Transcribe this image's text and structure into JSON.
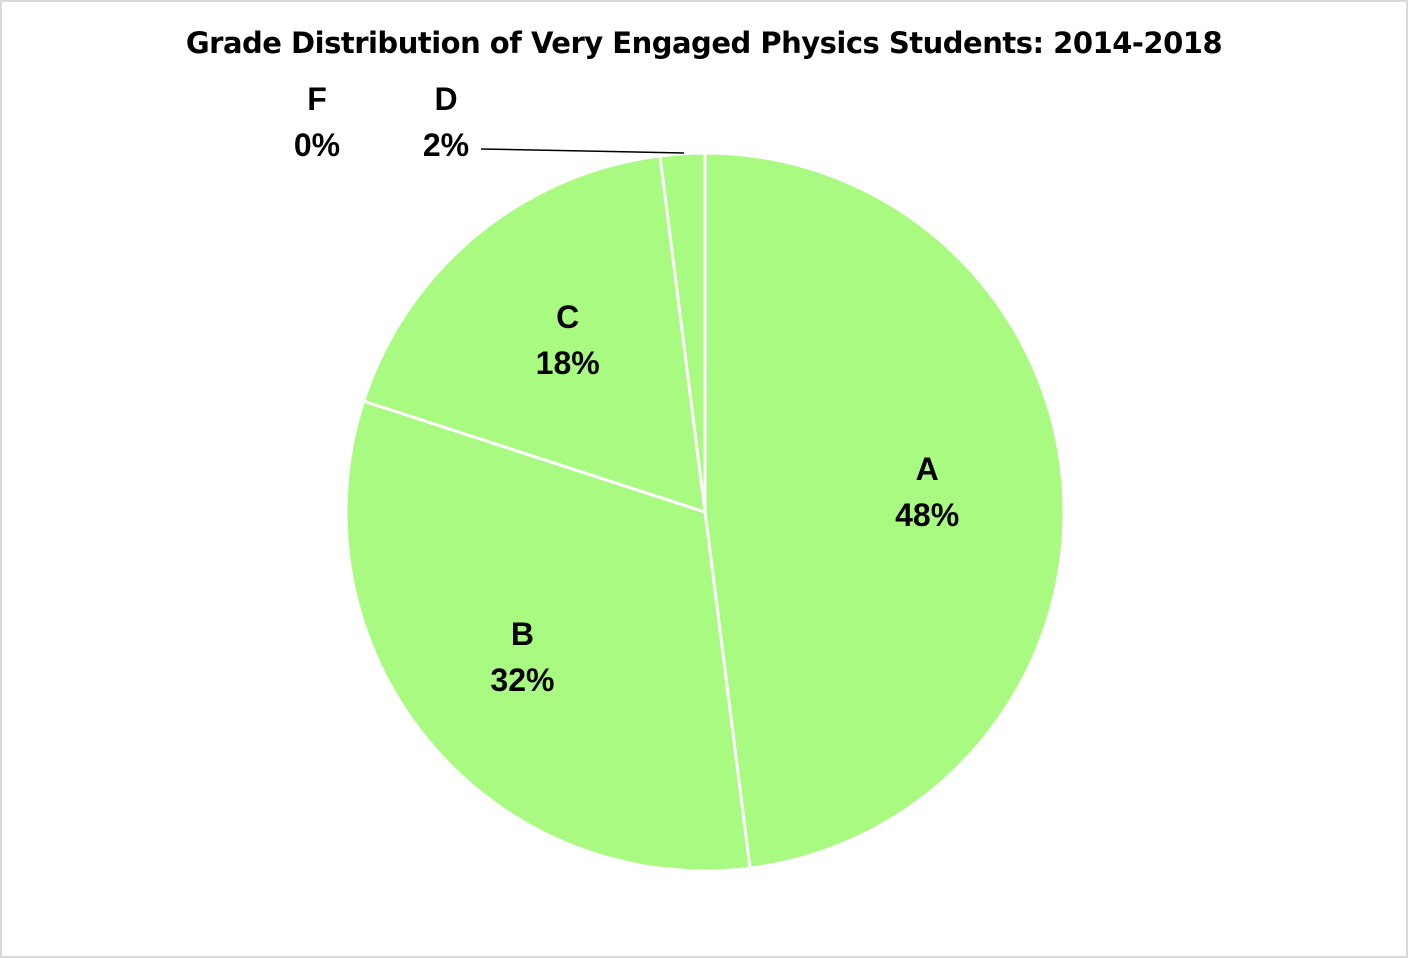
{
  "chart_data": {
    "type": "pie",
    "title": "Grade Distribution of Very Engaged Physics Students: 2014-2018",
    "categories": [
      "A",
      "B",
      "C",
      "D",
      "F"
    ],
    "values": [
      48,
      32,
      18,
      2,
      0
    ],
    "value_labels": [
      "48%",
      "32%",
      "18%",
      "2%",
      "0%"
    ],
    "unit": "%",
    "start_angle": "12 o'clock",
    "direction": "clockwise",
    "legend": "none",
    "data_labels": "category name and percentage",
    "colors": {
      "slice_fill": "#a9fa80",
      "slice_border": "#ffffff",
      "label_text": "#000000",
      "leader_line": "#000000",
      "frame_border": "#d9d9d9"
    }
  }
}
